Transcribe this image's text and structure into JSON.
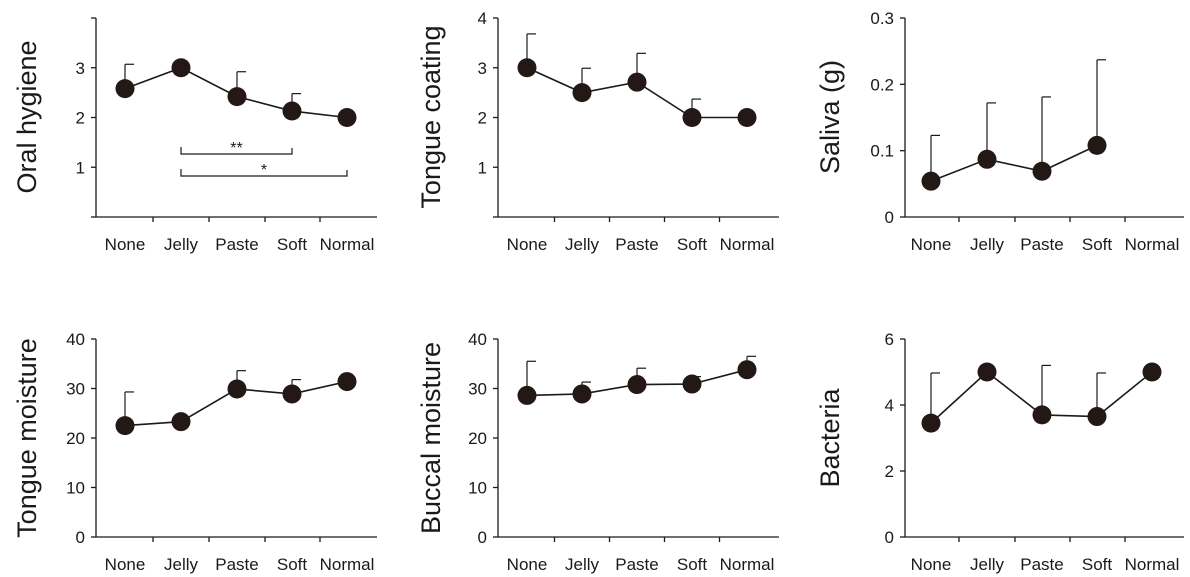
{
  "chart_data": [
    {
      "type": "line",
      "ylabel": "Oral hygiene",
      "categories": [
        "None",
        "Jelly",
        "Paste",
        "Soft",
        "Normal"
      ],
      "ylim": [
        0,
        4
      ],
      "yticks": [
        1,
        2,
        3
      ],
      "yticklabels": [
        "1",
        "2",
        "3"
      ],
      "values": [
        2.58,
        3.0,
        2.42,
        2.13,
        2.0
      ],
      "error_upper": [
        3.07,
        null,
        2.92,
        2.48,
        null
      ],
      "significance": [
        {
          "from": "Jelly",
          "to": "Soft",
          "label": "**"
        },
        {
          "from": "Jelly",
          "to": "Normal",
          "label": "*"
        }
      ]
    },
    {
      "type": "line",
      "ylabel": "Tongue coating",
      "categories": [
        "None",
        "Jelly",
        "Paste",
        "Soft",
        "Normal"
      ],
      "ylim": [
        0,
        4
      ],
      "yticks": [
        1,
        2,
        3,
        4
      ],
      "yticklabels": [
        "1",
        "2",
        "3",
        "4"
      ],
      "values": [
        3.0,
        2.5,
        2.71,
        2.0,
        2.0
      ],
      "error_upper": [
        3.68,
        2.99,
        3.29,
        2.37,
        null
      ]
    },
    {
      "type": "line",
      "ylabel": "Saliva (g)",
      "categories": [
        "None",
        "Jelly",
        "Paste",
        "Soft",
        "Normal"
      ],
      "ylim": [
        0,
        0.3
      ],
      "yticks": [
        0,
        0.1,
        0.2,
        0.3
      ],
      "yticklabels": [
        "0",
        "0.1",
        "0.2",
        "0.3"
      ],
      "values": [
        0.054,
        0.087,
        0.069,
        0.108,
        null
      ],
      "error_upper": [
        0.123,
        0.172,
        0.181,
        0.237,
        null
      ]
    },
    {
      "type": "line",
      "ylabel": "Tongue moisture",
      "categories": [
        "None",
        "Jelly",
        "Paste",
        "Soft",
        "Normal"
      ],
      "ylim": [
        0,
        40
      ],
      "yticks": [
        0,
        10,
        20,
        30,
        40
      ],
      "yticklabels": [
        "0",
        "10",
        "20",
        "30",
        "40"
      ],
      "values": [
        22.5,
        23.3,
        29.9,
        28.9,
        31.4
      ],
      "error_upper": [
        29.3,
        null,
        33.6,
        31.8,
        null
      ]
    },
    {
      "type": "line",
      "ylabel": "Buccal moisture",
      "categories": [
        "None",
        "Jelly",
        "Paste",
        "Soft",
        "Normal"
      ],
      "ylim": [
        0,
        40
      ],
      "yticks": [
        0,
        10,
        20,
        30,
        40
      ],
      "yticklabels": [
        "0",
        "10",
        "20",
        "30",
        "40"
      ],
      "values": [
        28.6,
        28.9,
        30.8,
        30.9,
        33.8
      ],
      "error_upper": [
        35.5,
        31.3,
        34.1,
        32.4,
        36.5
      ]
    },
    {
      "type": "line",
      "ylabel": "Bacteria",
      "categories": [
        "None",
        "Jelly",
        "Paste",
        "Soft",
        "Normal"
      ],
      "ylim": [
        0,
        6
      ],
      "yticks": [
        0,
        2,
        4,
        6
      ],
      "yticklabels": [
        "0",
        "2",
        "4",
        "6"
      ],
      "values": [
        3.45,
        5.0,
        3.7,
        3.65,
        5.0
      ],
      "error_upper": [
        4.97,
        null,
        5.2,
        4.97,
        null
      ]
    }
  ]
}
